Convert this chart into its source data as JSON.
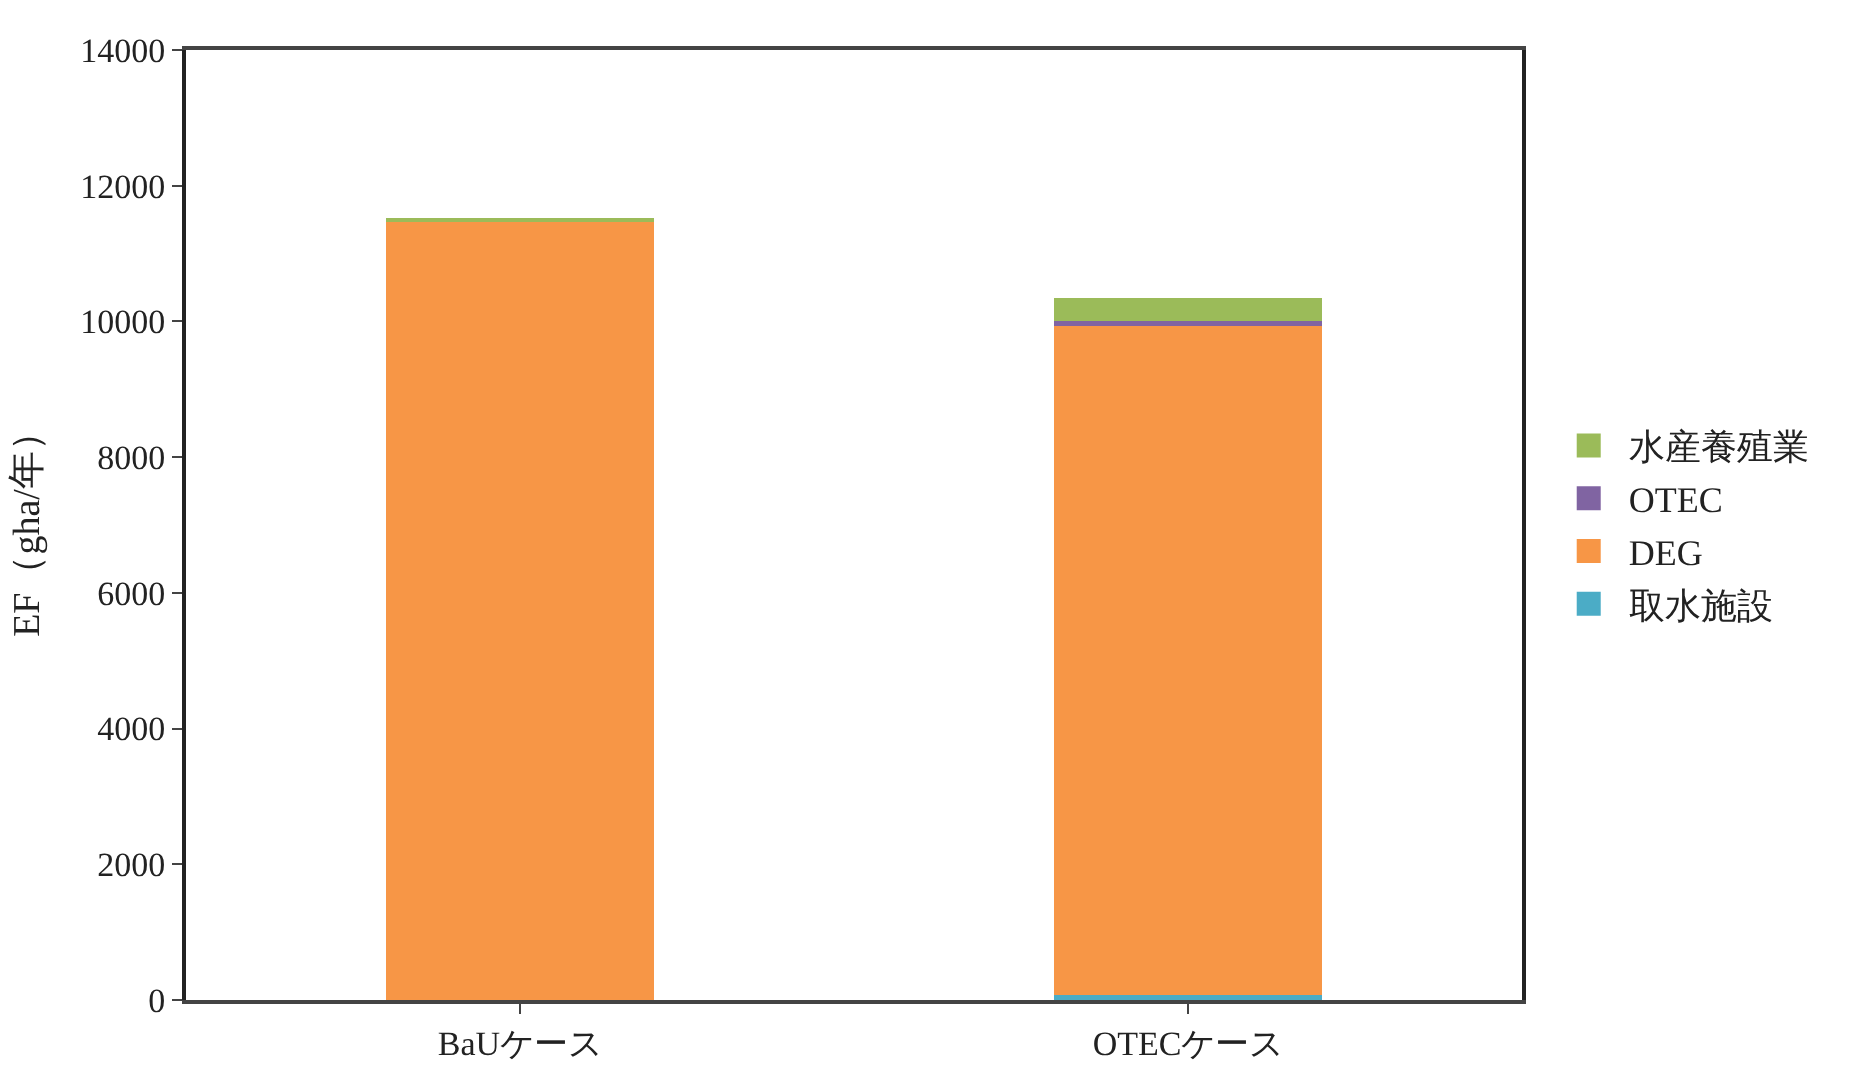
{
  "chart_data": {
    "type": "bar",
    "stacked": true,
    "ylabel": "EF（gha/年）",
    "categories": [
      "BaUケース",
      "OTECケース"
    ],
    "series": [
      {
        "name": "取水施設",
        "color": "#4bacc6",
        "values": [
          0,
          80
        ]
      },
      {
        "name": "DEG",
        "color": "#f79646",
        "values": [
          11470,
          9850
        ]
      },
      {
        "name": "OTEC",
        "color": "#8064a2",
        "values": [
          0,
          80
        ]
      },
      {
        "name": "水産養殖業",
        "color": "#9bbb59",
        "values": [
          40,
          330
        ]
      }
    ],
    "ylim": [
      0,
      14000
    ],
    "yticks": [
      0,
      2000,
      4000,
      6000,
      8000,
      10000,
      12000,
      14000
    ],
    "legend": "right"
  }
}
